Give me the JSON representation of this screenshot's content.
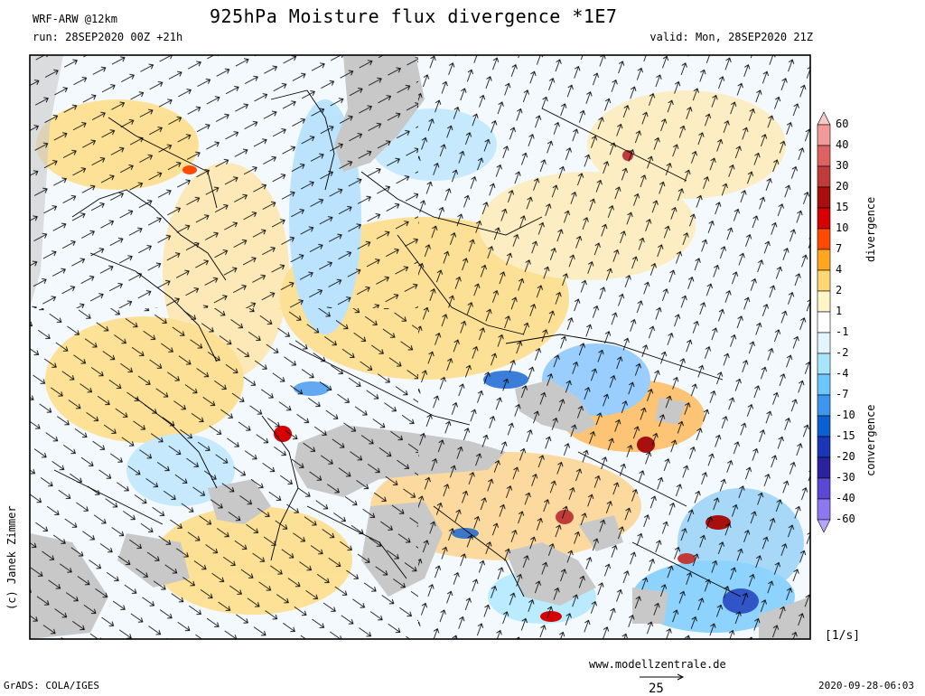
{
  "header": {
    "model": "WRF-ARW @12km",
    "run": "run: 28SEP2020 00Z +21h",
    "title": "925hPa Moisture flux divergence *1E7",
    "valid": "valid: Mon, 28SEP2020 21Z"
  },
  "colorbar": {
    "ticks": [
      "60",
      "40",
      "30",
      "20",
      "15",
      "10",
      "7",
      "4",
      "2",
      "1",
      "-1",
      "-2",
      "-4",
      "-7",
      "-10",
      "-15",
      "-20",
      "-30",
      "-40",
      "-60"
    ],
    "colors": [
      "#f7c9c9",
      "#f29a9a",
      "#de6262",
      "#c23b3b",
      "#a80f0f",
      "#d60000",
      "#ff4a00",
      "#ffa51e",
      "#ffd873",
      "#fff5c8",
      "#ffffff",
      "#e3f6ff",
      "#a8e6ff",
      "#6cc6ff",
      "#3e95ee",
      "#0b5fd1",
      "#1a35b8",
      "#2b22a0",
      "#5a47d6",
      "#8d78f0",
      "#b6a4ff"
    ],
    "divergence_label": "divergence",
    "convergence_label": "convergence",
    "unit": "[1/s]"
  },
  "footer": {
    "credit": "(c) Janek Zimmer",
    "website": "www.modellzentrale.de",
    "vector_scale": "25",
    "software": "GrADS: COLA/IGES",
    "timestamp": "2020-09-28-06:03"
  },
  "palette": {
    "land_gray": "#c8c8c8",
    "field_light": "#eaf4ff",
    "field_orange": "#ffa51e",
    "field_blue": "#6cc6ff"
  }
}
